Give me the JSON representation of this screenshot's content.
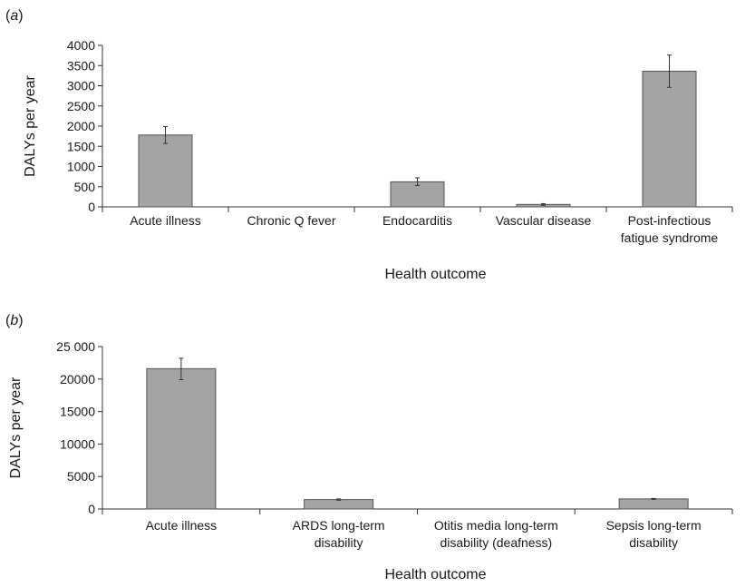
{
  "chart_data": [
    {
      "type": "bar",
      "panel_label": "a",
      "categories": [
        [
          "Acute illness"
        ],
        [
          "Chronic Q fever"
        ],
        [
          "Endocarditis"
        ],
        [
          "Vascular disease"
        ],
        [
          "Post-infectious",
          "fatigue syndrome"
        ]
      ],
      "values": [
        1780,
        0,
        620,
        60,
        3360
      ],
      "error_low": [
        1570,
        0,
        530,
        40,
        2960
      ],
      "error_high": [
        1990,
        0,
        720,
        80,
        3760
      ],
      "ylabel": "DALYs per year",
      "xlabel": "Health outcome",
      "ylim": [
        0,
        4000
      ],
      "yticks": [
        0,
        500,
        1000,
        1500,
        2000,
        2500,
        3000,
        3500,
        4000
      ],
      "ytick_labels": [
        "0",
        "500",
        "1000",
        "1500",
        "2000",
        "2500",
        "3000",
        "3500",
        "4000"
      ],
      "grid": false,
      "bar_color": "#a3a4a6"
    },
    {
      "type": "bar",
      "panel_label": "b",
      "categories": [
        [
          "Acute illness"
        ],
        [
          "ARDS long-term",
          "disability"
        ],
        [
          "Otitis media long-term",
          "disability (deafness)"
        ],
        [
          "Sepsis long-term",
          "disability"
        ]
      ],
      "values": [
        21600,
        1450,
        0,
        1550
      ],
      "error_low": [
        19900,
        1350,
        0,
        1480
      ],
      "error_high": [
        23200,
        1550,
        0,
        1620
      ],
      "ylabel": "DALYs per year",
      "xlabel": "Health outcome",
      "ylim": [
        0,
        25000
      ],
      "yticks": [
        0,
        5000,
        10000,
        15000,
        20000,
        25000
      ],
      "ytick_labels": [
        "0",
        "5000",
        "10000",
        "15000",
        "20000",
        "25 000"
      ],
      "grid": false,
      "bar_color": "#a3a4a6"
    }
  ]
}
